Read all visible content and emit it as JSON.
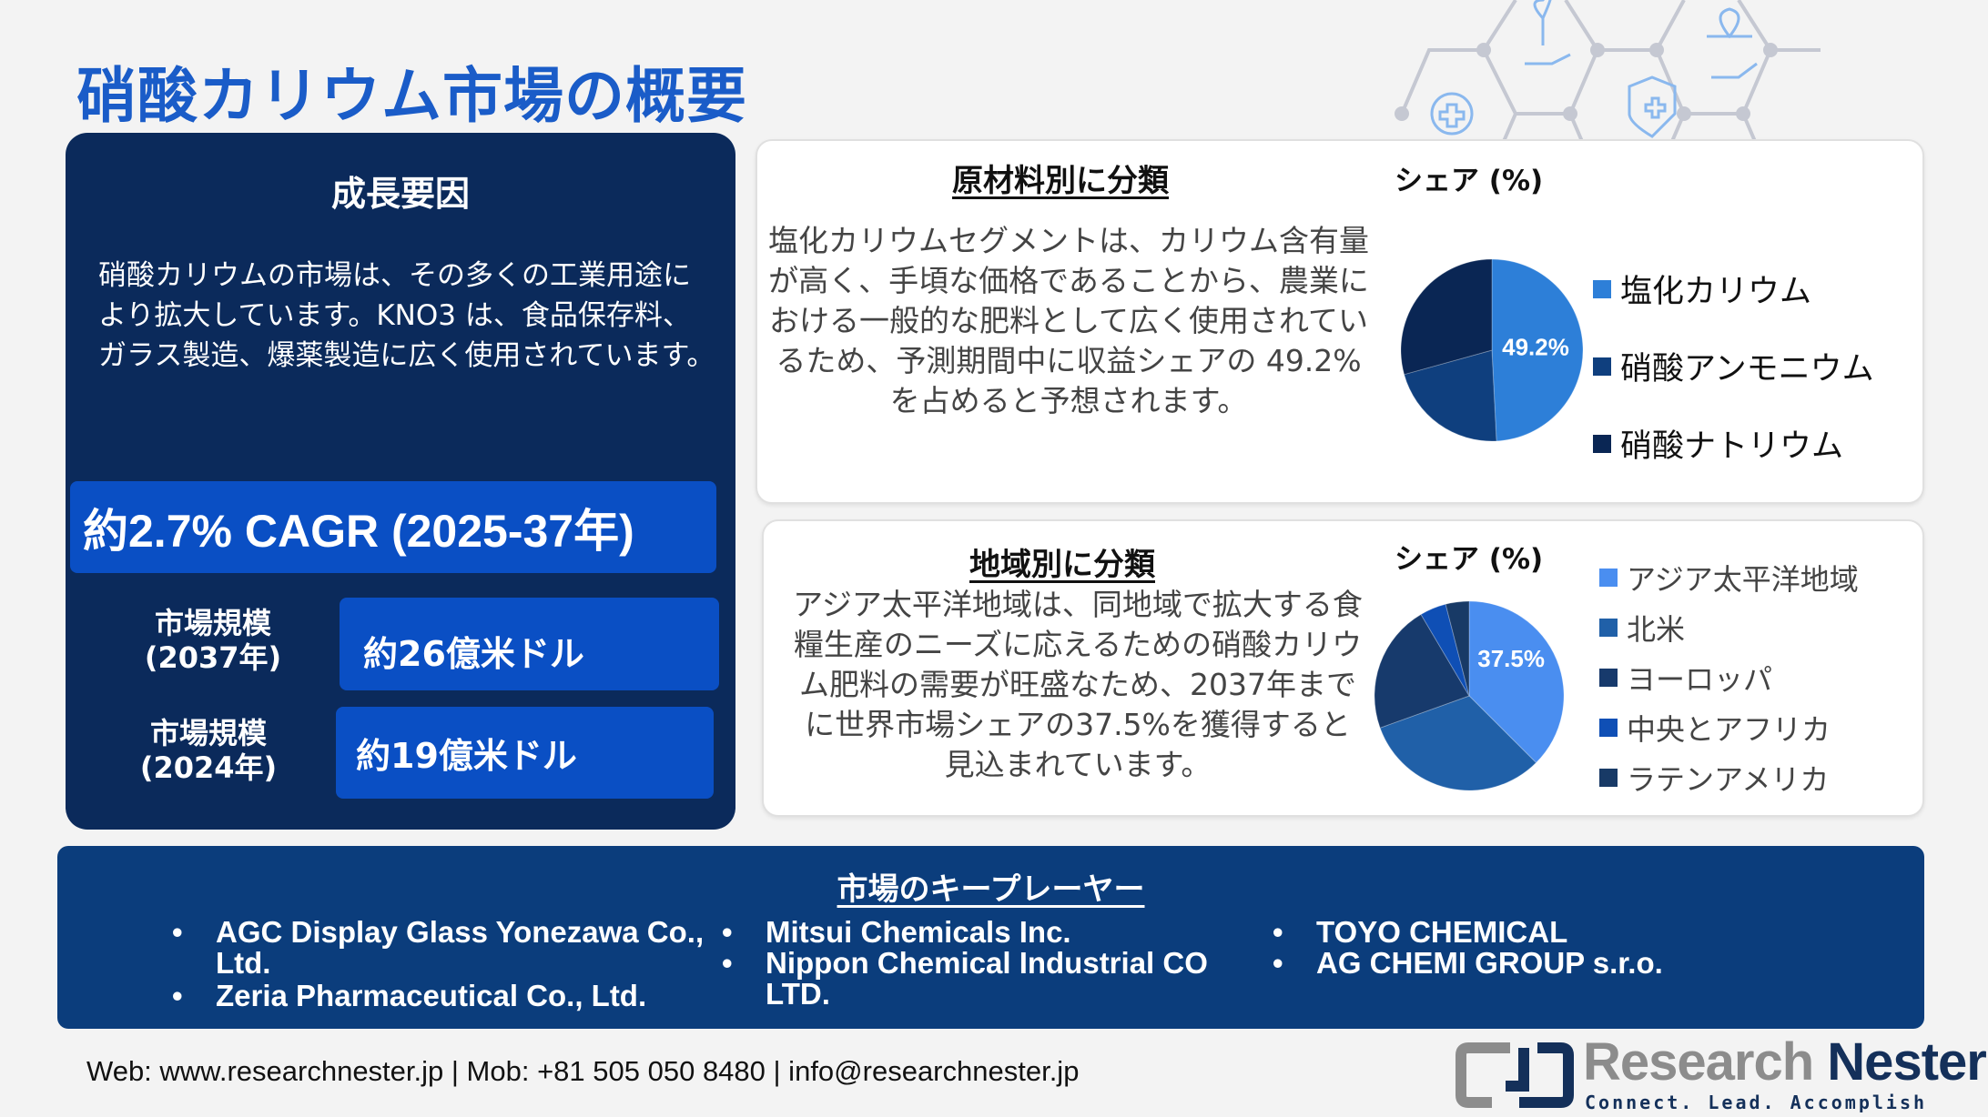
{
  "title": "硝酸カリウム市場の概要",
  "growth": {
    "heading": "成長要因",
    "text": "硝酸カリウムの市場は、その多くの工業用途により拡大しています。KNO3 は、食品保存料、ガラス製造、爆薬製造に広く使用されています。",
    "cagr": "約2.7% CAGR (2025-37年)",
    "market_size": [
      {
        "label_line1": "市場規模",
        "label_line2": "(2037年)",
        "value": "約26億米ドル"
      },
      {
        "label_line1": "市場規模",
        "label_line2": "(2024年)",
        "value": "約19億米ドル"
      }
    ]
  },
  "raw_material": {
    "heading": "原材料別に分類",
    "share_label": "シェア (%)",
    "text": "塩化カリウムセグメントは、カリウム含有量が高く、手頃な価格であることから、農業における一般的な肥料として広く使用されているため、予測期間中に収益シェアの 49.2% を占めると予想されます。"
  },
  "region": {
    "heading": "地域別に分類",
    "share_label": "シェア (%)",
    "text": "アジア太平洋地域は、同地域で拡大する食糧生産のニーズに応えるための硝酸カリウム肥料の需要が旺盛なため、2037年までに世界市場シェアの37.5%を獲得すると見込まれています。"
  },
  "chart_data": [
    {
      "type": "pie",
      "title": "シェア (%)",
      "categories": [
        "塩化カリウム",
        "硝酸アンモニウム",
        "硝酸ナトリウム"
      ],
      "values": [
        49.2,
        21.5,
        29.3
      ],
      "data_labels": [
        "49.2%",
        "",
        ""
      ],
      "colors": [
        "#2d7fd8",
        "#0f3f7e",
        "#0a2654"
      ],
      "legend": "right"
    },
    {
      "type": "pie",
      "title": "シェア (%)",
      "categories": [
        "アジア太平洋地域",
        "北米",
        "ヨーロッパ",
        "中央とアフリカ",
        "ラテンアメリカ"
      ],
      "values": [
        37.5,
        32,
        22,
        4.5,
        4
      ],
      "data_labels": [
        "37.5%",
        "",
        "",
        "",
        ""
      ],
      "colors": [
        "#4a8ef0",
        "#2060a8",
        "#173a6c",
        "#0f4fb5",
        "#183a66"
      ],
      "legend": "right"
    }
  ],
  "key_players": {
    "heading": "市場のキープレーヤー",
    "columns": [
      [
        "AGC Display Glass Yonezawa Co., Ltd.",
        "Zeria Pharmaceutical Co., Ltd."
      ],
      [
        "Mitsui Chemicals Inc.",
        "Nippon Chemical Industrial CO LTD."
      ],
      [
        "TOYO CHEMICAL",
        "AG CHEMI GROUP s.r.o."
      ]
    ]
  },
  "footer": {
    "contact": "Web: www.researchnester.jp | Mob: +81 505 050 8480 | info@researchnester.jp"
  },
  "logo": {
    "name_part1": "Research",
    "name_part2": "Nester",
    "tagline": "Connect. Lead. Accomplish"
  },
  "colors": {
    "title": "#1a5cc8",
    "panel_dark": "#0b2a5b",
    "accent_blue": "#0a4fc4",
    "key_players_bg": "#0b3d7c"
  }
}
